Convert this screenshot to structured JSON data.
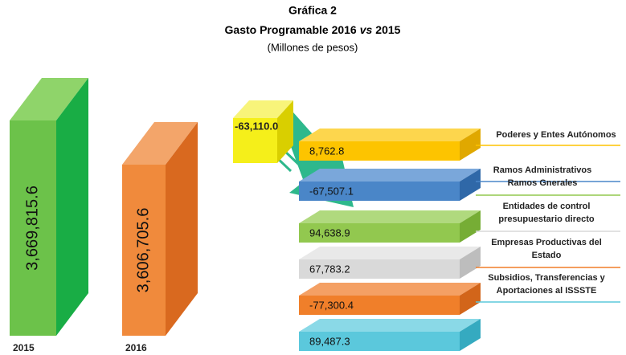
{
  "header": {
    "title": "Gráfica 2",
    "title_parts": [
      "Gasto Programable 2016",
      "vs",
      "2015"
    ],
    "subtitle": "(Millones de pesos)"
  },
  "totals": [
    {
      "year": "2015",
      "value": "3,669,815.6"
    },
    {
      "year": "2016",
      "value": "3,606,705.6"
    }
  ],
  "difference": "-63,110.0",
  "segments": [
    {
      "label": [
        "Poderes y Entes Autónomos"
      ],
      "value": "8,762.8"
    },
    {
      "label": [
        "Ramos Administrativos"
      ],
      "value": "-67,507.1"
    },
    {
      "label": [
        "Ramos Gnerales"
      ],
      "value": "94,638.9"
    },
    {
      "label": [
        "Entidades de control",
        "presupuestario directo"
      ],
      "value": "67,783.2"
    },
    {
      "label": [
        "Empresas Productivas del",
        "Estado"
      ],
      "value": "-77,300.4"
    },
    {
      "label": [
        "Subsidios, Transferencias y",
        "Aportaciones al ISSSTE"
      ],
      "value": "89,487.3"
    }
  ]
}
